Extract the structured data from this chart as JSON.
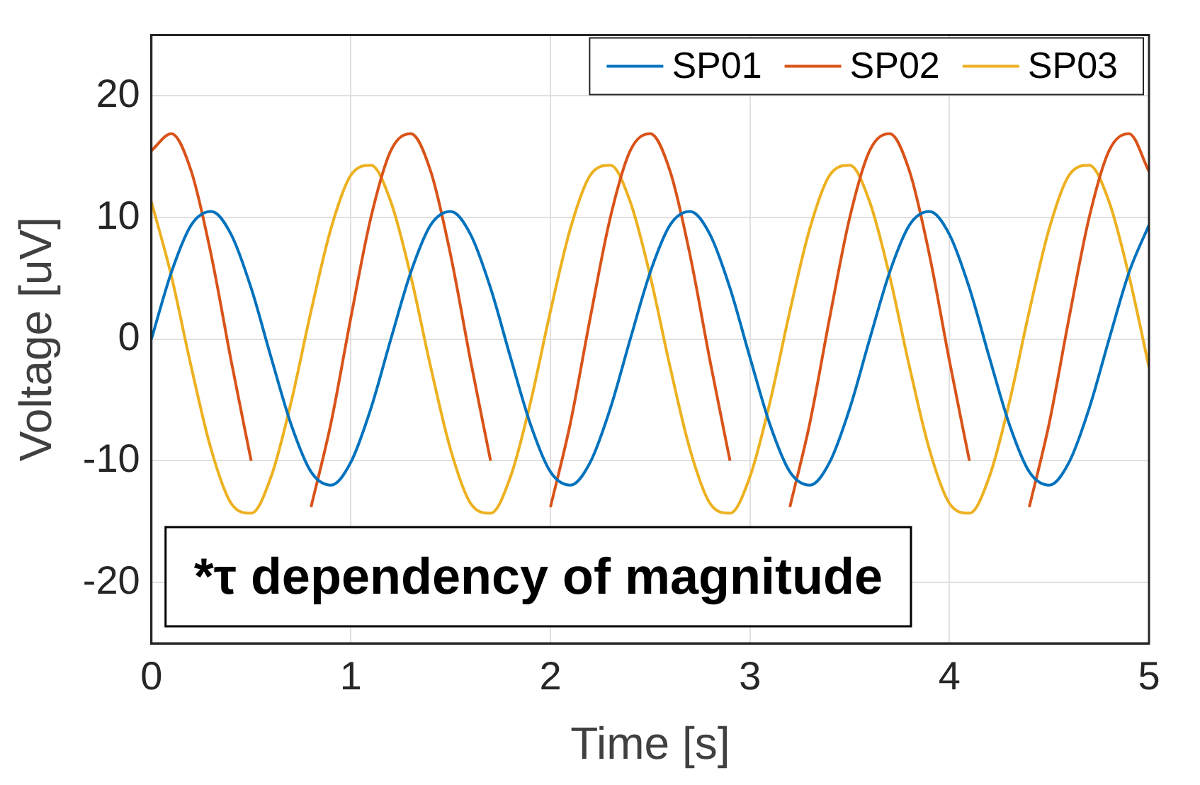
{
  "chart_data": {
    "type": "line",
    "xlabel": "Time [s]",
    "ylabel": "Voltage [uV]",
    "x": [
      0,
      0.1,
      0.2,
      0.3,
      0.4,
      0.5,
      0.6,
      0.7,
      0.8,
      0.9,
      1,
      1.1,
      1.2,
      1.3,
      1.4,
      1.5,
      1.6,
      1.7,
      1.8,
      1.9,
      2,
      2.1,
      2.2,
      2.3,
      2.4,
      2.5,
      2.6,
      2.7,
      2.8,
      2.9,
      3,
      3.1,
      3.2,
      3.3,
      3.4,
      3.5,
      3.6,
      3.7,
      3.8,
      3.9,
      4,
      4.1,
      4.2,
      4.3,
      4.4,
      4.5,
      4.6,
      4.7,
      4.8,
      4.9,
      5
    ],
    "series": [
      {
        "name": "SP01",
        "color": "#0072bd",
        "values": [
          0,
          5.5,
          9.4,
          10.5,
          8.6,
          4.2,
          -1.5,
          -7,
          -10.9,
          -12,
          -10.1,
          -5.7,
          0,
          5.5,
          9.4,
          10.5,
          8.6,
          4.2,
          -1.5,
          -7,
          -10.9,
          -12,
          -10.1,
          -5.7,
          0,
          5.5,
          9.4,
          10.5,
          8.6,
          4.2,
          -1.5,
          -7,
          -10.9,
          -12,
          -10.1,
          -5.7,
          0,
          5.5,
          9.4,
          10.5,
          8.6,
          4.2,
          -1.5,
          -7,
          -10.9,
          -12,
          -10.1,
          -5.7,
          0,
          5.5,
          9.4
        ]
      },
      {
        "name": "SP02",
        "color": "#d95319",
        "values": [
          15.5,
          16.9,
          13.8,
          6.9,
          -1.8,
          -10,
          null,
          null,
          -13.8,
          -6.9,
          1.8,
          10,
          15.5,
          16.9,
          13.8,
          6.9,
          -1.8,
          -10,
          null,
          null,
          -13.8,
          -6.9,
          1.8,
          10,
          15.5,
          16.9,
          13.8,
          6.9,
          -1.8,
          -10,
          null,
          null,
          -13.8,
          -6.9,
          1.8,
          10,
          15.5,
          16.9,
          13.8,
          6.9,
          -1.8,
          -10,
          null,
          null,
          -13.8,
          -6.9,
          1.8,
          10,
          15.5,
          16.9,
          13.8
        ]
      },
      {
        "name": "SP03",
        "color": "#edb120",
        "values": [
          11.3,
          5.2,
          -2.3,
          -9.1,
          -13.5,
          -14.3,
          -11.3,
          -5.2,
          2.3,
          9.1,
          13.5,
          14.3,
          11.3,
          5.2,
          -2.3,
          -9.1,
          -13.5,
          -14.3,
          -11.3,
          -5.2,
          2.3,
          9.1,
          13.5,
          14.3,
          11.3,
          5.2,
          -2.3,
          -9.1,
          -13.5,
          -14.3,
          -11.3,
          -5.2,
          2.3,
          9.1,
          13.5,
          14.3,
          11.3,
          5.2,
          -2.3,
          -9.1,
          -13.5,
          -14.3,
          -11.3,
          -5.2,
          2.3,
          9.1,
          13.5,
          14.3,
          11.3,
          5.2,
          -2.3
        ]
      }
    ],
    "xlim": [
      0,
      5
    ],
    "xticks": [
      0,
      1,
      2,
      3,
      4,
      5
    ],
    "ylim": [
      -25,
      25
    ],
    "yticks": [
      -20,
      -10,
      0,
      10,
      20
    ],
    "grid": true,
    "legend": "top right",
    "marker": "none",
    "line_style": "solid",
    "annotations": [
      "*τ dependency of magnitude"
    ]
  }
}
